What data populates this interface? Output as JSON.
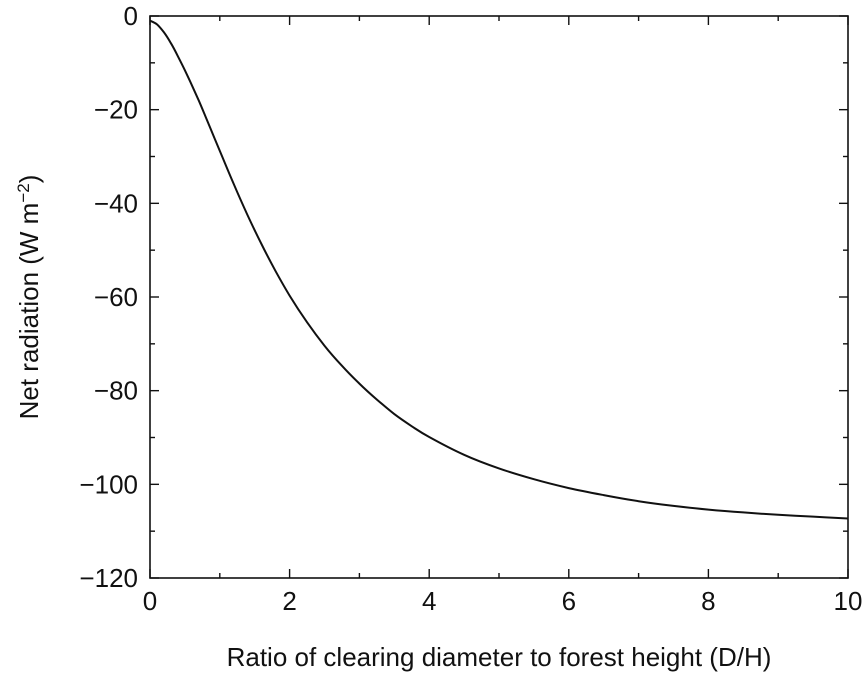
{
  "chart_data": {
    "type": "line",
    "title": "",
    "xlabel": "Ratio of clearing diameter to forest height (D/H)",
    "ylabel": {
      "main": "Net radiation (W m",
      "sup": "−2",
      "close": ")"
    },
    "xlim": [
      0,
      10
    ],
    "ylim": [
      -120,
      0
    ],
    "xticks": [
      0,
      2,
      4,
      6,
      8,
      10
    ],
    "xtick_labels": [
      "0",
      "2",
      "4",
      "6",
      "8",
      "10"
    ],
    "yticks": [
      0,
      -20,
      -40,
      -60,
      -80,
      -100,
      -120
    ],
    "ytick_labels": [
      "0",
      "−20",
      "−40",
      "−60",
      "−80",
      "−100",
      "−120"
    ],
    "grid": false,
    "series": [
      {
        "x": [
          0,
          0.1,
          0.2,
          0.3,
          0.4,
          0.5,
          0.6,
          0.7,
          0.8,
          1.0,
          1.2,
          1.4,
          1.6,
          1.8,
          2.0,
          2.25,
          2.5,
          2.75,
          3.0,
          3.25,
          3.5,
          3.75,
          4.0,
          4.5,
          5.0,
          5.5,
          6.0,
          6.5,
          7.0,
          7.5,
          8.0,
          8.5,
          9.0,
          9.5,
          10.0
        ],
        "y": [
          -1,
          -1.8,
          -3.5,
          -5.8,
          -8.6,
          -11.6,
          -14.8,
          -18.1,
          -21.6,
          -28.8,
          -35.9,
          -42.6,
          -48.8,
          -54.5,
          -59.7,
          -65.4,
          -70.4,
          -74.7,
          -78.5,
          -81.9,
          -85.0,
          -87.6,
          -89.9,
          -93.7,
          -96.6,
          -98.9,
          -100.8,
          -102.3,
          -103.6,
          -104.6,
          -105.4,
          -106.0,
          -106.5,
          -106.9,
          -107.3
        ]
      }
    ]
  }
}
